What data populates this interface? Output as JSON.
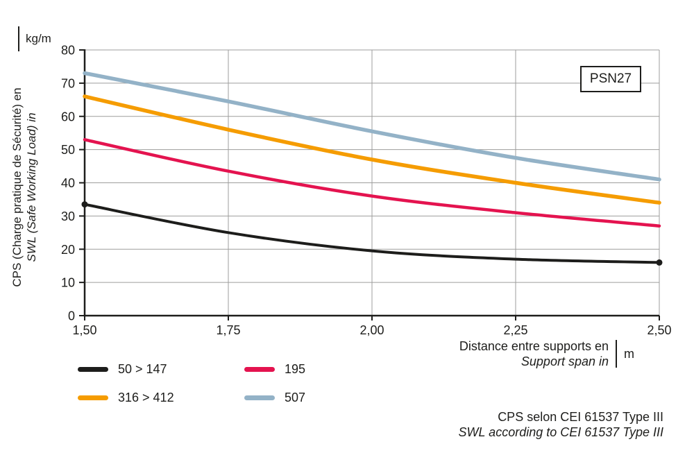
{
  "badge": {
    "label": "PSN27"
  },
  "y_axis": {
    "label_fr": "CPS (Charge pratique de Sécurité) en",
    "label_en": "SWL (Safe Working Load) in",
    "unit": "kg/m"
  },
  "x_axis": {
    "label_fr": "Distance entre supports en",
    "label_en": "Support span in",
    "unit": "m"
  },
  "footnote": {
    "line_fr": "CPS selon CEI 61537 Type III",
    "line_en": "SWL according to CEI 61537 Type III"
  },
  "colors": {
    "axis": "#1d1d1b",
    "grid": "#9d9d9c",
    "text": "#1d1d1b"
  },
  "chart_data": {
    "type": "line",
    "title": "PSN27",
    "x": [
      1.5,
      1.75,
      2.0,
      2.25,
      2.5
    ],
    "x_tick_labels": [
      "1,50",
      "1,75",
      "2,00",
      "2,25",
      "2,50"
    ],
    "xlim": [
      1.5,
      2.5
    ],
    "ylim": [
      0,
      80
    ],
    "y_ticks": [
      0,
      10,
      20,
      30,
      40,
      50,
      60,
      70,
      80
    ],
    "grid": true,
    "xlabel": "Distance entre supports en / Support span in (m)",
    "ylabel": "CPS (Charge pratique de Sécurité) en / SWL (Safe Working Load) in (kg/m)",
    "legend_position": "bottom-left",
    "series": [
      {
        "name": "50 > 147",
        "color": "#1d1d1b",
        "values": [
          33.5,
          25,
          19.5,
          17,
          16
        ],
        "line_width": 4,
        "endpoint_dots": true
      },
      {
        "name": "195",
        "color": "#e4134f",
        "values": [
          53,
          43.5,
          36,
          31,
          27
        ],
        "line_width": 4.5,
        "endpoint_dots": false
      },
      {
        "name": "316 > 412",
        "color": "#f59c00",
        "values": [
          66,
          56,
          47,
          40,
          34
        ],
        "line_width": 5.5,
        "endpoint_dots": false
      },
      {
        "name": "507",
        "color": "#93b2c7",
        "values": [
          73,
          64.5,
          55.5,
          47.5,
          41
        ],
        "line_width": 5.5,
        "endpoint_dots": false
      }
    ]
  }
}
